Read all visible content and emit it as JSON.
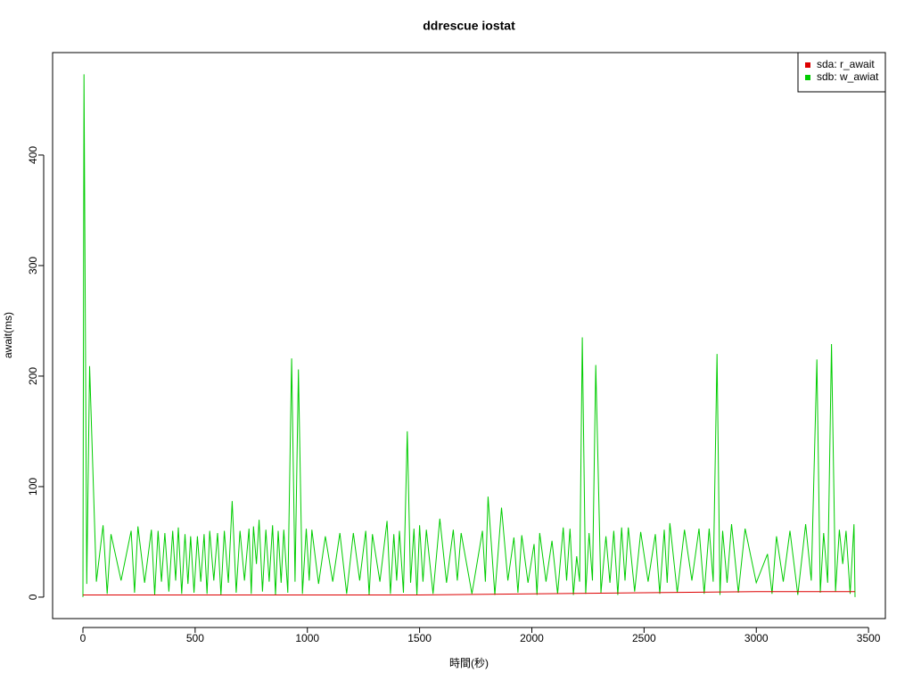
{
  "chart_data": {
    "type": "line",
    "title": "ddrescue iostat",
    "x_label": "時間(秒)",
    "y_label": "await(ms)",
    "xlim": [
      -135,
      3575
    ],
    "ylim": [
      -19.4,
      492.7
    ],
    "xticks": [
      0,
      500,
      1000,
      1500,
      2000,
      2500,
      3000,
      3500
    ],
    "yticks": [
      0,
      100,
      200,
      300,
      400
    ],
    "legend": "top-right",
    "series": [
      {
        "name": "sdb: w_awiat",
        "color": "#00cc00",
        "x": [
          0,
          5,
          17,
          30,
          60,
          90,
          108,
          125,
          170,
          215,
          230,
          245,
          275,
          305,
          320,
          335,
          350,
          365,
          383,
          400,
          413,
          425,
          440,
          455,
          468,
          480,
          495,
          510,
          525,
          540,
          553,
          565,
          583,
          600,
          615,
          630,
          648,
          665,
          683,
          700,
          720,
          740,
          750,
          760,
          773,
          785,
          800,
          815,
          830,
          845,
          858,
          870,
          883,
          895,
          913,
          930,
          945,
          960,
          978,
          995,
          1008,
          1020,
          1050,
          1080,
          1113,
          1145,
          1175,
          1205,
          1233,
          1260,
          1275,
          1290,
          1323,
          1355,
          1370,
          1385,
          1398,
          1410,
          1428,
          1445,
          1460,
          1475,
          1488,
          1500,
          1515,
          1530,
          1560,
          1590,
          1620,
          1650,
          1668,
          1685,
          1733,
          1780,
          1793,
          1805,
          1835,
          1865,
          1893,
          1920,
          1938,
          1955,
          1983,
          2010,
          2023,
          2035,
          2063,
          2090,
          2115,
          2140,
          2155,
          2170,
          2185,
          2200,
          2213,
          2225,
          2240,
          2255,
          2270,
          2285,
          2308,
          2330,
          2348,
          2365,
          2383,
          2400,
          2415,
          2430,
          2458,
          2485,
          2518,
          2550,
          2570,
          2590,
          2603,
          2615,
          2648,
          2680,
          2713,
          2745,
          2768,
          2790,
          2808,
          2825,
          2838,
          2850,
          2870,
          2890,
          2920,
          2950,
          3000,
          3050,
          3070,
          3090,
          3120,
          3150,
          3185,
          3220,
          3245,
          3270,
          3285,
          3300,
          3318,
          3335,
          3353,
          3370,
          3385,
          3400,
          3418,
          3435,
          3440
        ],
        "values": [
          0,
          473,
          12,
          209,
          14,
          65,
          3,
          57,
          15,
          60,
          4,
          64,
          13,
          61,
          2,
          60,
          14,
          58,
          5,
          60,
          15,
          63,
          3,
          57,
          12,
          55,
          4,
          55,
          14,
          57,
          3,
          60,
          15,
          58,
          2,
          60,
          13,
          87,
          4,
          60,
          15,
          62,
          3,
          64,
          30,
          70,
          5,
          61,
          14,
          65,
          2,
          60,
          13,
          61,
          4,
          216,
          14,
          206,
          3,
          62,
          15,
          61,
          12,
          55,
          14,
          58,
          3,
          58,
          15,
          60,
          2,
          57,
          14,
          69,
          3,
          57,
          15,
          60,
          4,
          150,
          13,
          62,
          2,
          65,
          14,
          61,
          3,
          71,
          13,
          61,
          15,
          58,
          3,
          60,
          14,
          91,
          2,
          81,
          15,
          54,
          4,
          56,
          13,
          48,
          2,
          58,
          14,
          51,
          3,
          63,
          15,
          62,
          2,
          37,
          14,
          235,
          3,
          58,
          15,
          210,
          4,
          55,
          13,
          60,
          2,
          63,
          15,
          63,
          5,
          59,
          14,
          57,
          3,
          61,
          13,
          67,
          4,
          61,
          15,
          62,
          3,
          62,
          14,
          220,
          2,
          60,
          13,
          66,
          4,
          62,
          13,
          39,
          3,
          55,
          14,
          60,
          2,
          66,
          15,
          215,
          4,
          58,
          13,
          229,
          5,
          61,
          30,
          60,
          3,
          66,
          0
        ]
      },
      {
        "name": "sda: r_await",
        "color": "#dd0000",
        "x": [
          0,
          500,
          1000,
          1500,
          2000,
          2500,
          3000,
          3440
        ],
        "values": [
          2,
          2,
          2,
          2,
          3,
          4,
          5,
          5
        ]
      }
    ]
  }
}
